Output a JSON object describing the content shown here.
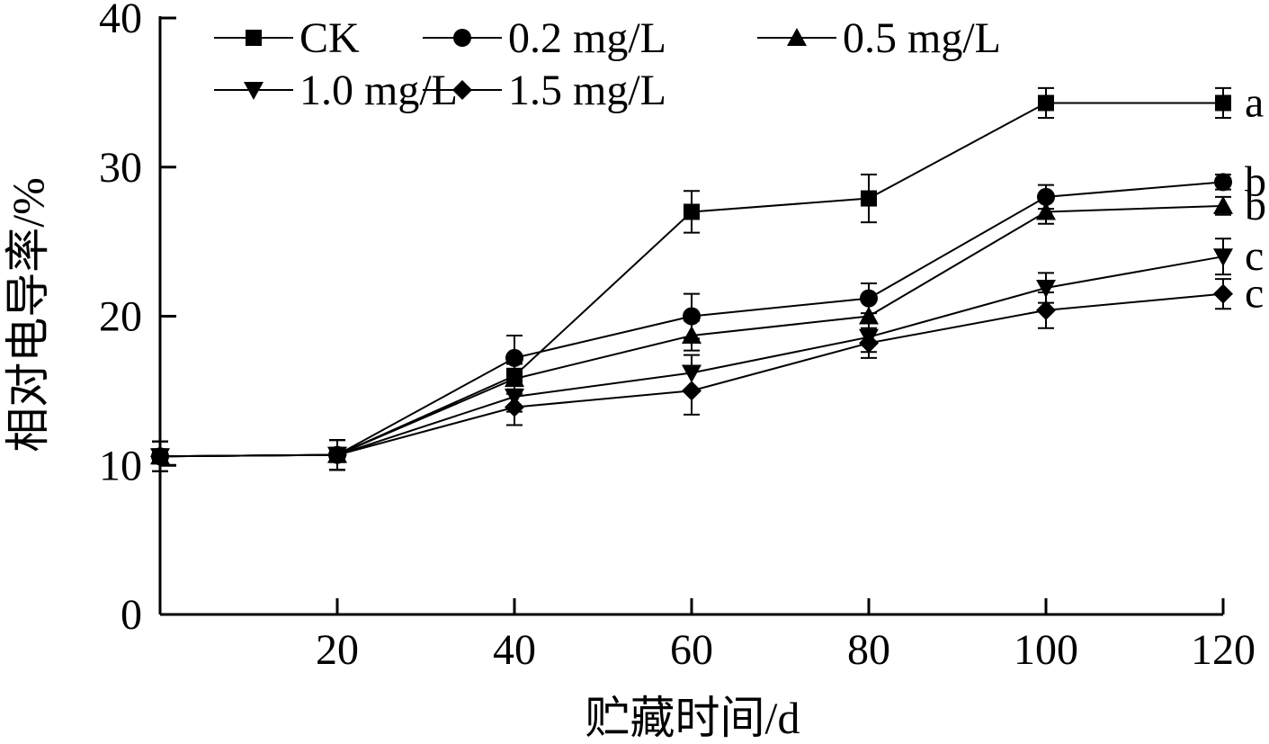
{
  "chart_data": {
    "type": "line",
    "xlabel": "贮藏时间/d",
    "ylabel": "相对电导率/%",
    "xlim": [
      0,
      120
    ],
    "ylim": [
      0,
      40
    ],
    "x_ticks": [
      20,
      40,
      60,
      80,
      100,
      120
    ],
    "x_tick_labels": [
      "20",
      "40",
      "60",
      "80",
      "100",
      "120"
    ],
    "y_ticks": [
      0,
      10,
      20,
      30,
      40
    ],
    "y_tick_labels": [
      "0",
      "10",
      "20",
      "30",
      "40"
    ],
    "grid": false,
    "legend_position": "top-left",
    "x": [
      0,
      20,
      40,
      60,
      80,
      100,
      120
    ],
    "series": [
      {
        "name": "CK",
        "marker": "square",
        "values": [
          10.6,
          10.7,
          16.0,
          27.0,
          27.9,
          34.3,
          34.3
        ],
        "errors": [
          1.0,
          1.0,
          1.0,
          1.4,
          1.6,
          1.0,
          1.0
        ],
        "significance": "a"
      },
      {
        "name": "0.2 mg/L",
        "marker": "circle",
        "values": [
          10.6,
          10.7,
          17.2,
          20.0,
          21.2,
          28.0,
          29.0
        ],
        "errors": [
          1.0,
          1.0,
          1.5,
          1.5,
          1.0,
          0.8,
          0.5
        ],
        "significance": "b"
      },
      {
        "name": "0.5 mg/L",
        "marker": "triangle-up",
        "values": [
          10.6,
          10.7,
          15.8,
          18.7,
          20.0,
          27.0,
          27.4
        ],
        "errors": [
          1.0,
          1.0,
          1.0,
          1.0,
          1.0,
          0.8,
          0.6
        ],
        "significance": "b"
      },
      {
        "name": "1.0 mg/L",
        "marker": "triangle-down",
        "values": [
          10.6,
          10.7,
          14.6,
          16.2,
          18.6,
          21.9,
          24.0
        ],
        "errors": [
          1.0,
          1.0,
          1.0,
          1.2,
          1.0,
          1.0,
          1.2
        ],
        "significance": "c"
      },
      {
        "name": "1.5 mg/L",
        "marker": "diamond",
        "values": [
          10.6,
          10.7,
          13.9,
          15.0,
          18.2,
          20.4,
          21.5
        ],
        "errors": [
          1.0,
          1.0,
          1.2,
          1.6,
          1.0,
          1.2,
          1.0
        ],
        "significance": "c"
      }
    ]
  }
}
